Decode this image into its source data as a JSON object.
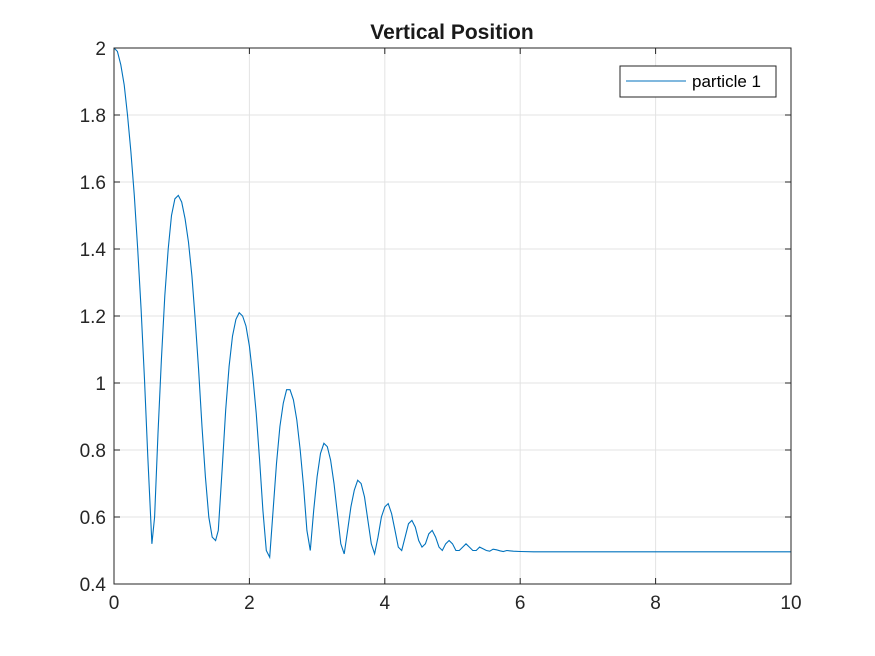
{
  "chart_data": {
    "type": "line",
    "title": "Vertical Position",
    "xlabel": "",
    "ylabel": "",
    "xlim": [
      0,
      10
    ],
    "ylim": [
      0.4,
      2
    ],
    "x_ticks": [
      "0",
      "2",
      "4",
      "6",
      "8",
      "10"
    ],
    "y_ticks": [
      "0.4",
      "0.6",
      "0.8",
      "1",
      "1.2",
      "1.4",
      "1.6",
      "1.8",
      "2"
    ],
    "x_tick_values": [
      0,
      2,
      4,
      6,
      8,
      10
    ],
    "y_tick_values": [
      0.4,
      0.6,
      0.8,
      1.0,
      1.2,
      1.4,
      1.6,
      1.8,
      2.0
    ],
    "grid": true,
    "legend_position": "top-right",
    "series": [
      {
        "name": "particle 1",
        "color": "#0072bd",
        "x": [
          0,
          0.05,
          0.1,
          0.15,
          0.2,
          0.25,
          0.3,
          0.35,
          0.4,
          0.45,
          0.5,
          0.56,
          0.6,
          0.65,
          0.7,
          0.75,
          0.8,
          0.85,
          0.9,
          0.95,
          1.0,
          1.05,
          1.1,
          1.15,
          1.2,
          1.25,
          1.3,
          1.35,
          1.4,
          1.45,
          1.5,
          1.54,
          1.6,
          1.65,
          1.7,
          1.75,
          1.8,
          1.85,
          1.9,
          1.95,
          2.0,
          2.05,
          2.1,
          2.15,
          2.2,
          2.25,
          2.3,
          2.35,
          2.4,
          2.45,
          2.5,
          2.55,
          2.6,
          2.65,
          2.7,
          2.75,
          2.8,
          2.85,
          2.9,
          2.95,
          3.0,
          3.05,
          3.1,
          3.15,
          3.2,
          3.25,
          3.3,
          3.35,
          3.4,
          3.45,
          3.5,
          3.55,
          3.6,
          3.65,
          3.7,
          3.75,
          3.8,
          3.85,
          3.9,
          3.95,
          4.0,
          4.05,
          4.1,
          4.15,
          4.2,
          4.25,
          4.3,
          4.35,
          4.4,
          4.45,
          4.5,
          4.55,
          4.6,
          4.65,
          4.7,
          4.75,
          4.8,
          4.85,
          4.9,
          4.95,
          5.0,
          5.05,
          5.1,
          5.15,
          5.2,
          5.25,
          5.3,
          5.35,
          5.4,
          5.45,
          5.5,
          5.55,
          5.6,
          5.65,
          5.7,
          5.75,
          5.8,
          5.9,
          6.0,
          6.2,
          6.5,
          7.0,
          8.0,
          9.0,
          10.0
        ],
        "y": [
          2.0,
          1.99,
          1.95,
          1.89,
          1.8,
          1.69,
          1.56,
          1.4,
          1.22,
          1.01,
          0.78,
          0.52,
          0.6,
          0.85,
          1.07,
          1.26,
          1.4,
          1.5,
          1.55,
          1.56,
          1.54,
          1.49,
          1.42,
          1.32,
          1.19,
          1.04,
          0.87,
          0.72,
          0.6,
          0.54,
          0.53,
          0.56,
          0.75,
          0.92,
          1.05,
          1.14,
          1.19,
          1.21,
          1.2,
          1.17,
          1.11,
          1.02,
          0.91,
          0.77,
          0.62,
          0.5,
          0.48,
          0.62,
          0.76,
          0.87,
          0.94,
          0.98,
          0.98,
          0.95,
          0.89,
          0.8,
          0.69,
          0.56,
          0.5,
          0.62,
          0.72,
          0.79,
          0.82,
          0.81,
          0.77,
          0.7,
          0.61,
          0.52,
          0.49,
          0.56,
          0.63,
          0.68,
          0.71,
          0.7,
          0.66,
          0.59,
          0.52,
          0.49,
          0.54,
          0.6,
          0.63,
          0.64,
          0.61,
          0.56,
          0.51,
          0.5,
          0.54,
          0.58,
          0.59,
          0.57,
          0.53,
          0.51,
          0.52,
          0.55,
          0.56,
          0.54,
          0.51,
          0.5,
          0.52,
          0.53,
          0.52,
          0.5,
          0.5,
          0.51,
          0.52,
          0.51,
          0.5,
          0.5,
          0.51,
          0.505,
          0.5,
          0.498,
          0.504,
          0.502,
          0.499,
          0.497,
          0.5,
          0.498,
          0.497,
          0.496,
          0.496,
          0.496,
          0.496,
          0.496,
          0.496
        ]
      }
    ]
  }
}
